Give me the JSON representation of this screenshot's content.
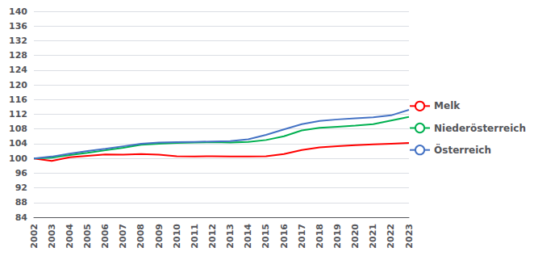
{
  "chart_data": {
    "type": "line",
    "categories": [
      "2002",
      "2003",
      "2004",
      "2005",
      "2006",
      "2007",
      "2008",
      "2009",
      "2010",
      "2011",
      "2012",
      "2013",
      "2014",
      "2015",
      "2016",
      "2017",
      "2018",
      "2019",
      "2020",
      "2021",
      "2022",
      "2023"
    ],
    "series": [
      {
        "name": "Melk",
        "color": "#ff0000",
        "values": [
          100.0,
          99.3,
          100.3,
          100.7,
          101.1,
          101.0,
          101.2,
          101.0,
          100.6,
          100.5,
          100.6,
          100.5,
          100.5,
          100.6,
          101.2,
          102.3,
          103.0,
          103.3,
          103.6,
          103.8,
          104.0,
          104.2
        ]
      },
      {
        "name": "Niederösterreich",
        "color": "#00b050",
        "values": [
          100.0,
          100.2,
          100.9,
          101.5,
          102.2,
          102.9,
          103.7,
          104.0,
          104.2,
          104.3,
          104.4,
          104.3,
          104.5,
          105.0,
          106.0,
          107.6,
          108.3,
          108.6,
          108.9,
          109.3,
          110.3,
          111.3
        ]
      },
      {
        "name": "Österreich",
        "color": "#4472c4",
        "values": [
          100.0,
          100.5,
          101.3,
          102.0,
          102.6,
          103.3,
          104.0,
          104.3,
          104.4,
          104.5,
          104.6,
          104.7,
          105.2,
          106.4,
          107.9,
          109.3,
          110.2,
          110.6,
          110.9,
          111.2,
          111.7,
          113.2
        ]
      }
    ],
    "ylim": [
      84,
      140
    ],
    "yticks": [
      84,
      88,
      92,
      96,
      100,
      104,
      108,
      112,
      116,
      120,
      124,
      128,
      132,
      136,
      140
    ],
    "grid": true,
    "legend": "right"
  }
}
